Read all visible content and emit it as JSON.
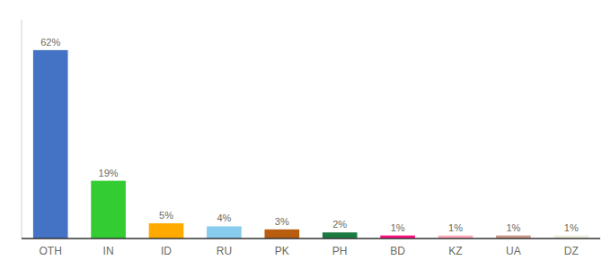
{
  "chart_data": {
    "type": "bar",
    "categories": [
      "OTH",
      "IN",
      "ID",
      "RU",
      "PK",
      "PH",
      "BD",
      "KZ",
      "UA",
      "DZ"
    ],
    "values": [
      62,
      19,
      5,
      4,
      3,
      2,
      1,
      1,
      1,
      1
    ],
    "value_labels": [
      "62%",
      "19%",
      "5%",
      "4%",
      "3%",
      "2%",
      "1%",
      "1%",
      "1%",
      "1%"
    ],
    "colors": [
      "#4472c4",
      "#33cc33",
      "#ffaa00",
      "#88ccee",
      "#b85c10",
      "#1a7a40",
      "#ff1080",
      "#ffaabb",
      "#cc9988",
      "#f0eedd"
    ],
    "ylim": [
      0,
      72
    ],
    "data_labels": true,
    "tick_labels": "x",
    "grid": false
  }
}
